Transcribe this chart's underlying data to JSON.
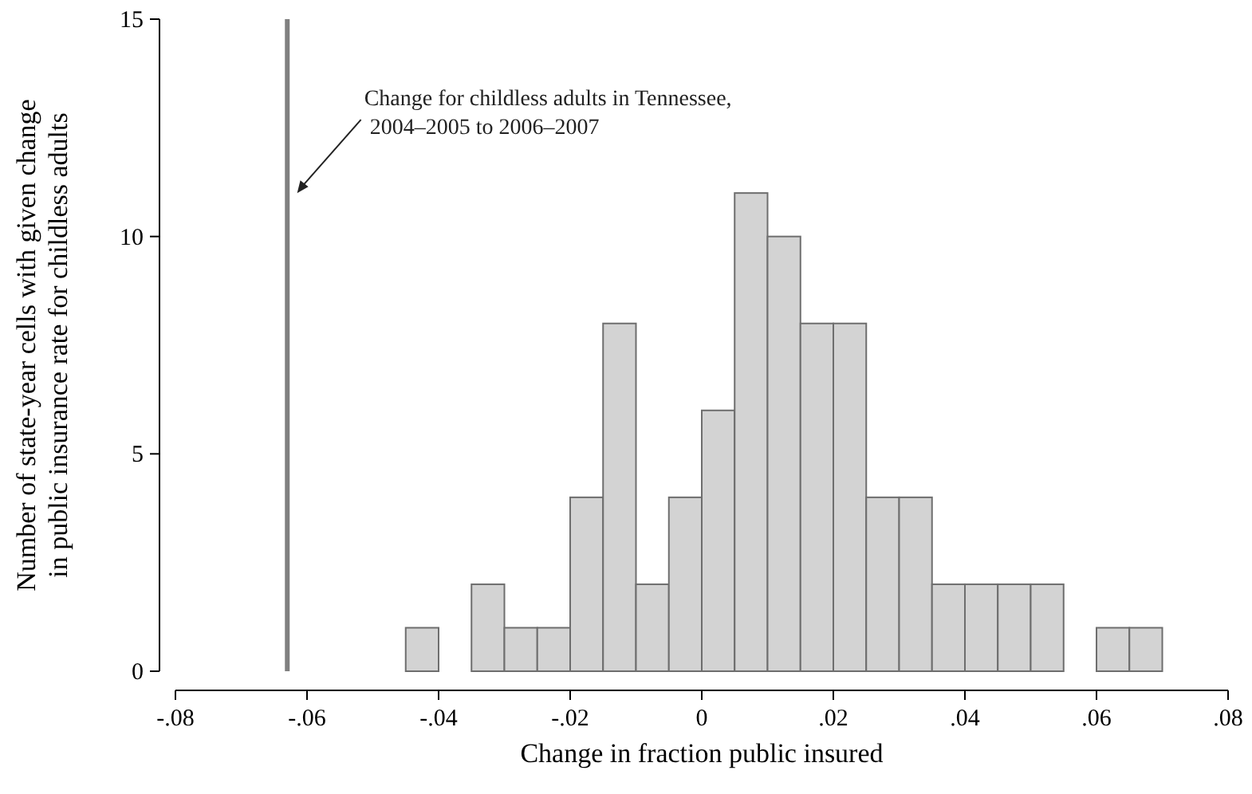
{
  "chart_data": {
    "type": "histogram",
    "xlabel": "Change in fraction public insured",
    "ylabel": "Number of state-year cells with given change\nin public insurance rate for childless adults",
    "bins": [
      -0.045,
      -0.04,
      -0.035,
      -0.03,
      -0.025,
      -0.02,
      -0.015,
      -0.01,
      -0.005,
      0,
      0.005,
      0.01,
      0.015,
      0.02,
      0.025,
      0.03,
      0.035,
      0.04,
      0.045,
      0.05,
      0.055,
      0.06,
      0.065,
      0.07
    ],
    "values": [
      1,
      0,
      2,
      1,
      1,
      4,
      8,
      2,
      4,
      6,
      11,
      10,
      8,
      8,
      4,
      4,
      2,
      2,
      2,
      2,
      0,
      1,
      1
    ],
    "color": "#d3d3d3",
    "xlim": [
      -0.08,
      0.08
    ],
    "xticks": [
      {
        "value": -0.08,
        "label": "-.08"
      },
      {
        "value": -0.06,
        "label": "-.06"
      },
      {
        "value": -0.04,
        "label": "-.04"
      },
      {
        "value": -0.02,
        "label": "-.02"
      },
      0,
      {
        "value": 0.02,
        "label": ".02"
      },
      {
        "value": 0.04,
        "label": ".04"
      },
      {
        "value": 0.06,
        "label": ".06"
      },
      {
        "value": 0.08,
        "label": ".08"
      }
    ],
    "ylim": [
      0,
      15
    ],
    "yticks": [
      0,
      5,
      10,
      15
    ],
    "grid": false,
    "ref_lines": [
      {
        "axis": "x",
        "value": -0.063,
        "color": "#808080"
      }
    ],
    "annotations": [
      {
        "text": "Change for childless adults in Tennessee,\n 2004–2005 to 2006–2007",
        "x": -0.0615,
        "y": 11
      }
    ]
  }
}
